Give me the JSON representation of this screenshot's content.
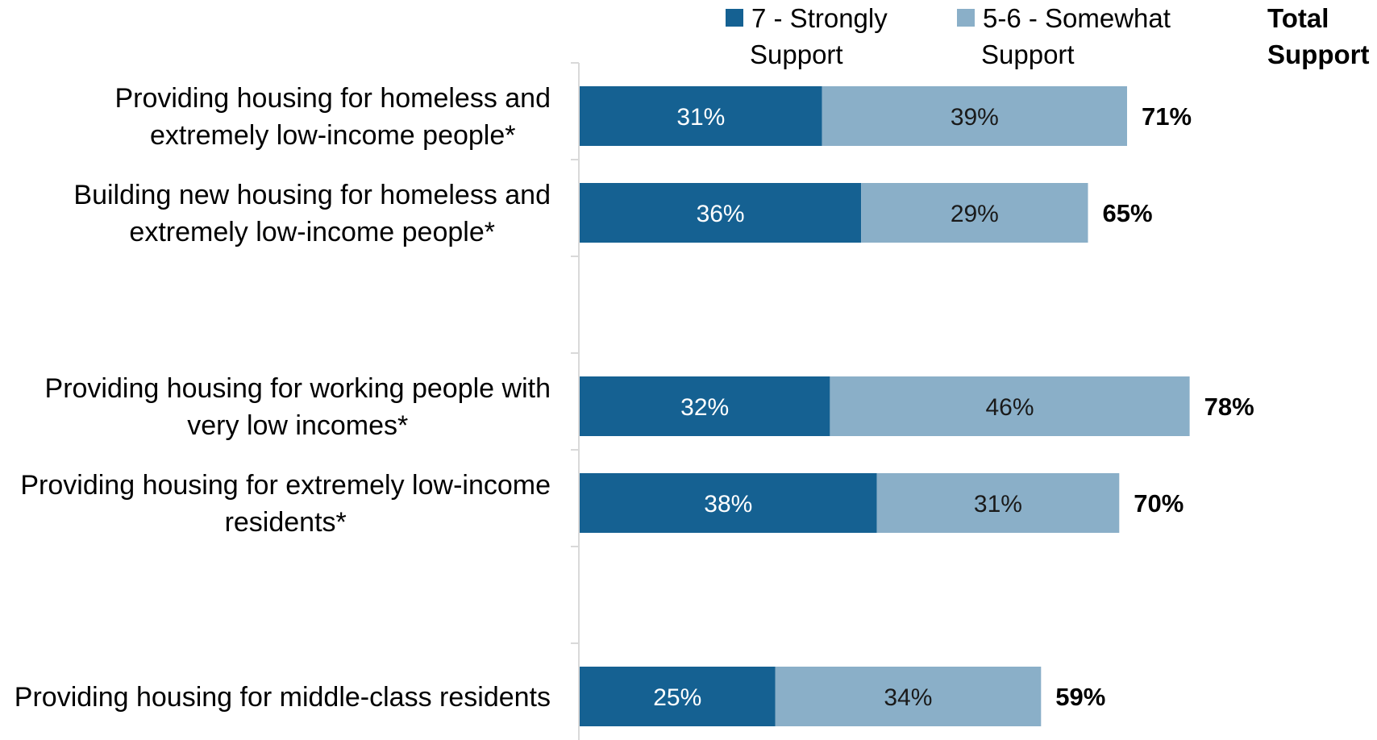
{
  "chart_data": {
    "type": "bar",
    "orientation": "horizontal",
    "stacked": true,
    "categories": [
      [
        "Providing housing for homeless and",
        "extremely low-income people*"
      ],
      [
        "Building new housing for homeless and",
        "extremely low-income people*"
      ],
      [
        "Providing housing for working people with",
        "very low incomes*"
      ],
      [
        "Providing housing for extremely low-income",
        "residents*"
      ],
      [
        "Providing housing for middle-class residents"
      ]
    ],
    "groups": [
      [
        0,
        1
      ],
      [
        2,
        3
      ],
      [
        4
      ]
    ],
    "series": [
      {
        "name": [
          "7 - Strongly",
          "Support"
        ],
        "color": "#156192",
        "values": [
          31,
          36,
          32,
          38,
          25
        ],
        "labels": [
          "31%",
          "36%",
          "32%",
          "38%",
          "25%"
        ]
      },
      {
        "name": [
          "5-6 - Somewhat",
          "Support"
        ],
        "color": "#8aafc8",
        "values": [
          39,
          29,
          46,
          31,
          34
        ],
        "labels": [
          "39%",
          "29%",
          "46%",
          "31%",
          "34%"
        ]
      }
    ],
    "totals_header": [
      "Total",
      "Support"
    ],
    "totals": [
      "71%",
      "65%",
      "78%",
      "70%",
      "59%"
    ],
    "xlim": [
      0,
      78
    ],
    "legend_position": "top",
    "grid": false
  }
}
